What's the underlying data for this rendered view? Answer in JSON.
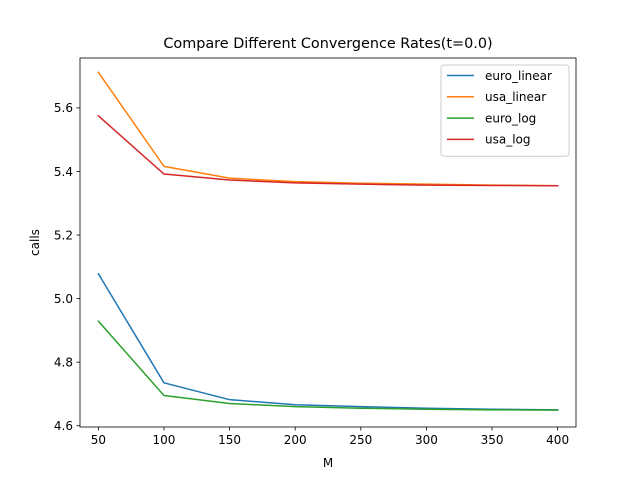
{
  "chart_data": {
    "type": "line",
    "title": "Compare Different Convergence Rates(t=0.0)",
    "xlabel": "M",
    "ylabel": "calls",
    "x": [
      50,
      100,
      150,
      200,
      250,
      300,
      350,
      400
    ],
    "xlim": [
      36,
      414
    ],
    "ylim": [
      4.596,
      5.757
    ],
    "xticks": [
      50,
      100,
      150,
      200,
      250,
      300,
      350,
      400
    ],
    "xtick_labels": [
      "50",
      "100",
      "150",
      "200",
      "250",
      "300",
      "350",
      "400"
    ],
    "yticks": [
      4.6,
      4.8,
      5.0,
      5.2,
      5.4,
      5.6
    ],
    "ytick_labels": [
      "4.6",
      "4.8",
      "5.0",
      "5.2",
      "5.4",
      "5.6"
    ],
    "grid": false,
    "legend_position": "top-right",
    "series": [
      {
        "name": "euro_linear",
        "color": "#1f77b4",
        "values": [
          5.078,
          4.735,
          4.682,
          4.666,
          4.66,
          4.655,
          4.652,
          4.65
        ]
      },
      {
        "name": "usa_linear",
        "color": "#ff7f0e",
        "values": [
          5.712,
          5.416,
          5.379,
          5.368,
          5.363,
          5.36,
          5.357,
          5.355
        ]
      },
      {
        "name": "euro_log",
        "color": "#2ca02c",
        "values": [
          4.929,
          4.695,
          4.67,
          4.66,
          4.655,
          4.652,
          4.65,
          4.649
        ]
      },
      {
        "name": "usa_log",
        "color": "#d62728",
        "values": [
          5.575,
          5.392,
          5.373,
          5.364,
          5.36,
          5.357,
          5.356,
          5.355
        ]
      }
    ]
  }
}
